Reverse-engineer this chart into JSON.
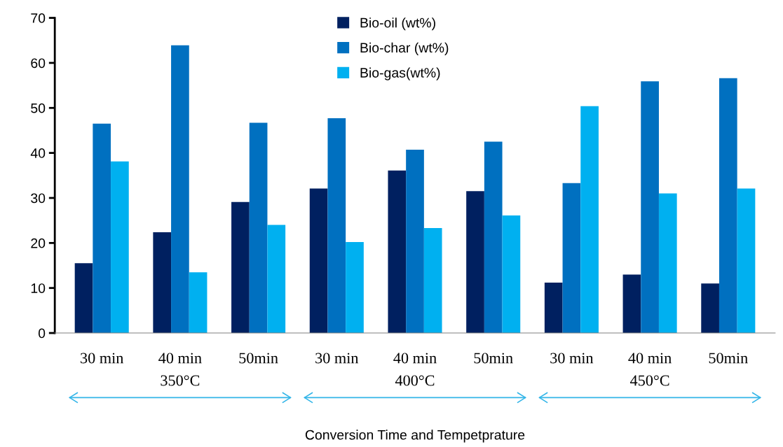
{
  "chart_data": {
    "type": "bar",
    "xlabel": "Conversion Time and Tempetprature",
    "categories": [
      "30 min",
      "40 min",
      "50min",
      "30 min",
      "40 min",
      "50min",
      "30 min",
      "40 min",
      "50min"
    ],
    "series": [
      {
        "name": "Bio-oil (wt%)",
        "color": "#002060",
        "values": [
          15.5,
          22.4,
          29.1,
          32.1,
          36.1,
          31.5,
          11.2,
          13.0,
          11.0
        ]
      },
      {
        "name": "Bio-char (wt%)",
        "color": "#0070c0",
        "values": [
          46.5,
          63.9,
          46.7,
          47.7,
          40.7,
          42.5,
          33.3,
          55.9,
          56.6
        ]
      },
      {
        "name": "Bio-gas(wt%)",
        "color": "#00b0f0",
        "values": [
          38.1,
          13.5,
          24.0,
          20.2,
          23.3,
          26.1,
          50.4,
          31.0,
          32.1
        ]
      }
    ],
    "annotations": [
      "350°C",
      "400°C",
      "450°C"
    ],
    "ylim": [
      0,
      70
    ],
    "yticks": [
      0,
      10,
      20,
      30,
      40,
      50,
      60,
      70
    ],
    "grid": false,
    "legend": "top"
  }
}
